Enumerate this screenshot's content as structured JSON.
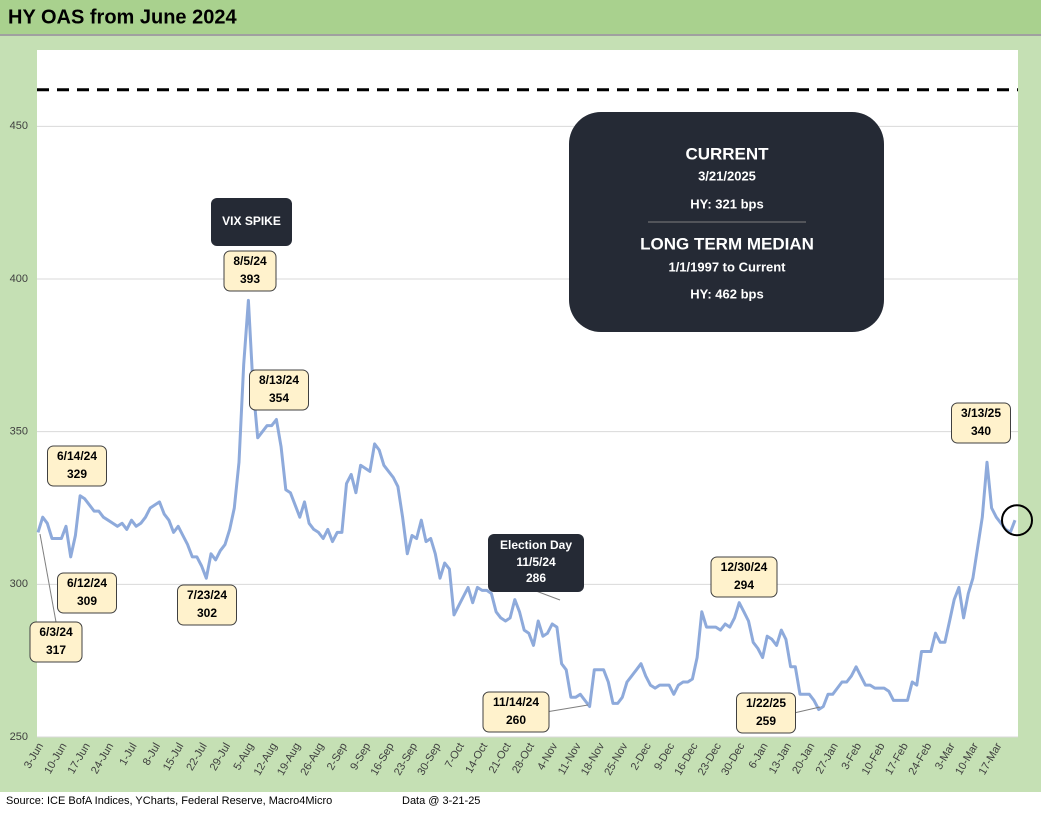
{
  "chart_data": {
    "type": "line",
    "title": "HY OAS from June 2024",
    "source": "Source: ICE BofA Indices, YCharts, Federal Reserve, Macro4Micro",
    "data_date": "Data @ 3-21-25",
    "color": "#8eaadb",
    "ylim": [
      250,
      475
    ],
    "yticks": [
      250,
      300,
      350,
      400,
      450
    ],
    "grid": true,
    "median": 462,
    "categories": [
      "3-Jun",
      null,
      null,
      null,
      null,
      "10-Jun",
      null,
      null,
      null,
      null,
      "17-Jun",
      null,
      null,
      null,
      null,
      "24-Jun",
      null,
      null,
      null,
      null,
      "1-Jul",
      null,
      null,
      null,
      null,
      "8-Jul",
      null,
      null,
      null,
      null,
      "15-Jul",
      null,
      null,
      null,
      null,
      "22-Jul",
      null,
      null,
      null,
      null,
      "29-Jul",
      null,
      null,
      null,
      null,
      "5-Aug",
      null,
      null,
      null,
      null,
      "12-Aug",
      null,
      null,
      null,
      null,
      "19-Aug",
      null,
      null,
      null,
      null,
      "26-Aug",
      null,
      null,
      null,
      null,
      "2-Sep",
      null,
      null,
      null,
      null,
      "9-Sep",
      null,
      null,
      null,
      null,
      "16-Sep",
      null,
      null,
      null,
      null,
      "23-Sep",
      null,
      null,
      null,
      null,
      "30-Sep",
      null,
      null,
      null,
      null,
      "7-Oct",
      null,
      null,
      null,
      null,
      "14-Oct",
      null,
      null,
      null,
      null,
      "21-Oct",
      null,
      null,
      null,
      null,
      "28-Oct",
      null,
      null,
      null,
      null,
      "4-Nov",
      null,
      null,
      null,
      null,
      "11-Nov",
      null,
      null,
      null,
      null,
      "18-Nov",
      null,
      null,
      null,
      null,
      "25-Nov",
      null,
      null,
      null,
      null,
      "2-Dec",
      null,
      null,
      null,
      null,
      "9-Dec",
      null,
      null,
      null,
      null,
      "16-Dec",
      null,
      null,
      null,
      null,
      "23-Dec",
      null,
      null,
      null,
      null,
      "30-Dec",
      null,
      null,
      null,
      null,
      "6-Jan",
      null,
      null,
      null,
      null,
      "13-Jan",
      null,
      null,
      null,
      null,
      "20-Jan",
      null,
      null,
      null,
      null,
      "27-Jan",
      null,
      null,
      null,
      null,
      "3-Feb",
      null,
      null,
      null,
      null,
      "10-Feb",
      null,
      null,
      null,
      null,
      "17-Feb",
      null,
      null,
      null,
      null,
      "24-Feb",
      null,
      null,
      null,
      null,
      "3-Mar",
      null,
      null,
      null,
      null,
      "10-Mar",
      null,
      null,
      null,
      null,
      "17-Mar",
      null,
      null,
      null,
      null
    ],
    "values": [
      317,
      322,
      320,
      315,
      315,
      315,
      319,
      309,
      316,
      329,
      328,
      326,
      324,
      324,
      322,
      321,
      320,
      319,
      320,
      318,
      321,
      319,
      320,
      322,
      325,
      326,
      327,
      323,
      321,
      317,
      319,
      316,
      313,
      309,
      309,
      306,
      302,
      310,
      308,
      311,
      313,
      318,
      325,
      340,
      372,
      393,
      365,
      348,
      350,
      352,
      352,
      354,
      345,
      331,
      330,
      326,
      322,
      327,
      320,
      318,
      317,
      315,
      318,
      314,
      317,
      317,
      333,
      336,
      330,
      339,
      338,
      337,
      346,
      344,
      339,
      337,
      335,
      332,
      322,
      310,
      316,
      315,
      321,
      314,
      315,
      310,
      302,
      307,
      305,
      290,
      293,
      296,
      299,
      294,
      299,
      298,
      298,
      297,
      291,
      289,
      288,
      289,
      295,
      291,
      285,
      284,
      280,
      288,
      283,
      284,
      287,
      286,
      274,
      272,
      263,
      263,
      264,
      262,
      260,
      272,
      272,
      272,
      268,
      261,
      261,
      263,
      268,
      270,
      272,
      274,
      270,
      267,
      266,
      267,
      267,
      267,
      264,
      267,
      268,
      268,
      269,
      276,
      291,
      286,
      286,
      286,
      285,
      287,
      286,
      289,
      294,
      291,
      288,
      281,
      279,
      276,
      283,
      282,
      280,
      285,
      282,
      273,
      273,
      264,
      264,
      264,
      262,
      259,
      260,
      264,
      264,
      266,
      268,
      268,
      270,
      273,
      270,
      267,
      267,
      266,
      266,
      266,
      265,
      262,
      262,
      262,
      262,
      268,
      267,
      278,
      278,
      278,
      284,
      281,
      281,
      288,
      295,
      299,
      289,
      297,
      302,
      312,
      322,
      340,
      325,
      322,
      320,
      318,
      317,
      321
    ],
    "annotations": [
      {
        "date": "6/3/24",
        "value": 317
      },
      {
        "date": "6/12/24",
        "value": 309
      },
      {
        "date": "6/14/24",
        "value": 329
      },
      {
        "date": "7/23/24",
        "value": 302
      },
      {
        "date": "8/5/24",
        "value": 393
      },
      {
        "date": "8/13/24",
        "value": 354
      },
      {
        "date": "11/14/24",
        "value": 260
      },
      {
        "date": "12/30/24",
        "value": 294
      },
      {
        "date": "1/22/25",
        "value": 259
      },
      {
        "date": "3/13/25",
        "value": 340
      }
    ],
    "vix_label": "VIX SPIKE",
    "election": {
      "label": "Election Day",
      "date": "11/5/24",
      "value": 286
    },
    "info_box": {
      "current_title": "CURRENT",
      "current_date": "3/21/2025",
      "current_value": "HY: 321 bps",
      "median_title": "LONG TERM MEDIAN",
      "median_period": "1/1/1997 to Current",
      "median_value": "HY: 462 bps"
    }
  }
}
